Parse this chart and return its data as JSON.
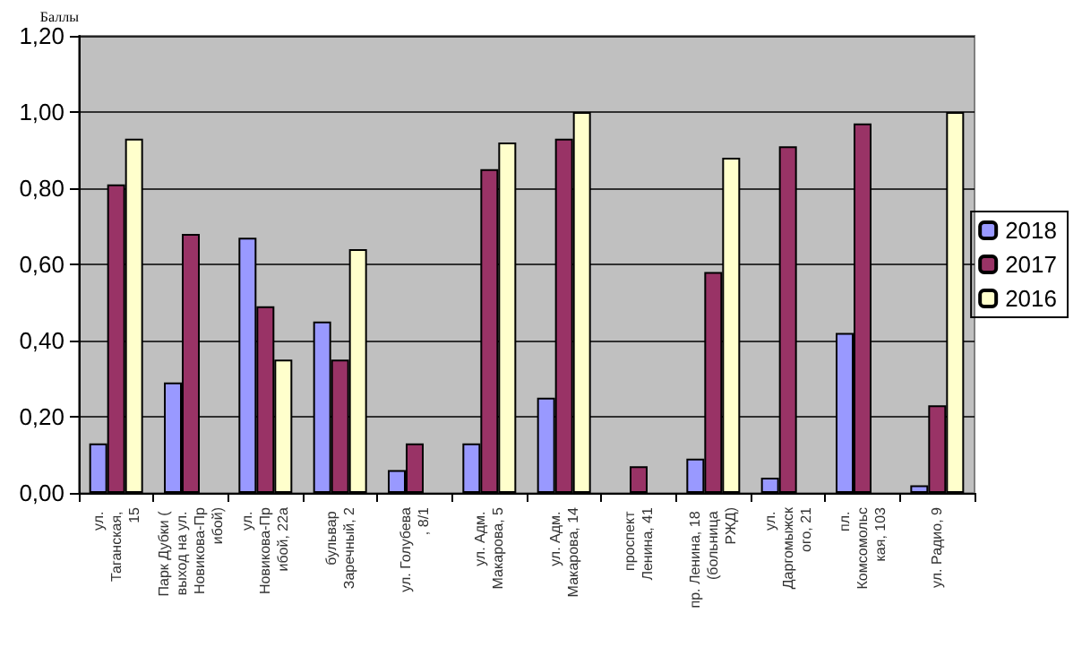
{
  "chart_data": {
    "type": "bar",
    "ylabel": "Баллы",
    "categories": [
      "ул. Таганская, 15",
      "Парк Дубки ( выход на ул. Новикова-Прибой)",
      "ул. Новикова-Прибой, 22а",
      "бульвар Заречный, 2",
      "ул. Голубева, 8/1",
      "ул. Адм. Макарова, 5",
      "ул. Адм. Макарова, 14",
      "проспект Ленина, 41",
      "пр. Ленина, 18 (больница РЖД)",
      "ул. Даргомыжского, 21",
      "пл. Комсомольская, 103",
      "ул. Радио, 9"
    ],
    "series": [
      {
        "name": "2018",
        "color": "#9999ff",
        "values": [
          0.13,
          0.29,
          0.67,
          0.45,
          0.06,
          0.13,
          0.25,
          null,
          0.09,
          0.04,
          0.42,
          0.02
        ]
      },
      {
        "name": "2017",
        "color": "#993366",
        "values": [
          0.81,
          0.68,
          0.49,
          0.35,
          0.13,
          0.85,
          0.93,
          0.07,
          0.58,
          0.91,
          0.97,
          0.23
        ]
      },
      {
        "name": "2016",
        "color": "#ffffcc",
        "values": [
          0.93,
          null,
          0.35,
          0.64,
          null,
          0.92,
          1.0,
          null,
          0.88,
          null,
          null,
          1.0
        ]
      }
    ],
    "ylim": [
      0,
      1.2
    ],
    "yticks": [
      {
        "value": 0,
        "label": "0,00"
      },
      {
        "value": 0.2,
        "label": "0,20"
      },
      {
        "value": 0.4,
        "label": "0,40"
      },
      {
        "value": 0.6,
        "label": "0,60"
      },
      {
        "value": 0.8,
        "label": "0,80"
      },
      {
        "value": 1.0,
        "label": "1,00"
      },
      {
        "value": 1.2,
        "label": "1,20"
      }
    ],
    "grid": "y",
    "legend": "right"
  }
}
